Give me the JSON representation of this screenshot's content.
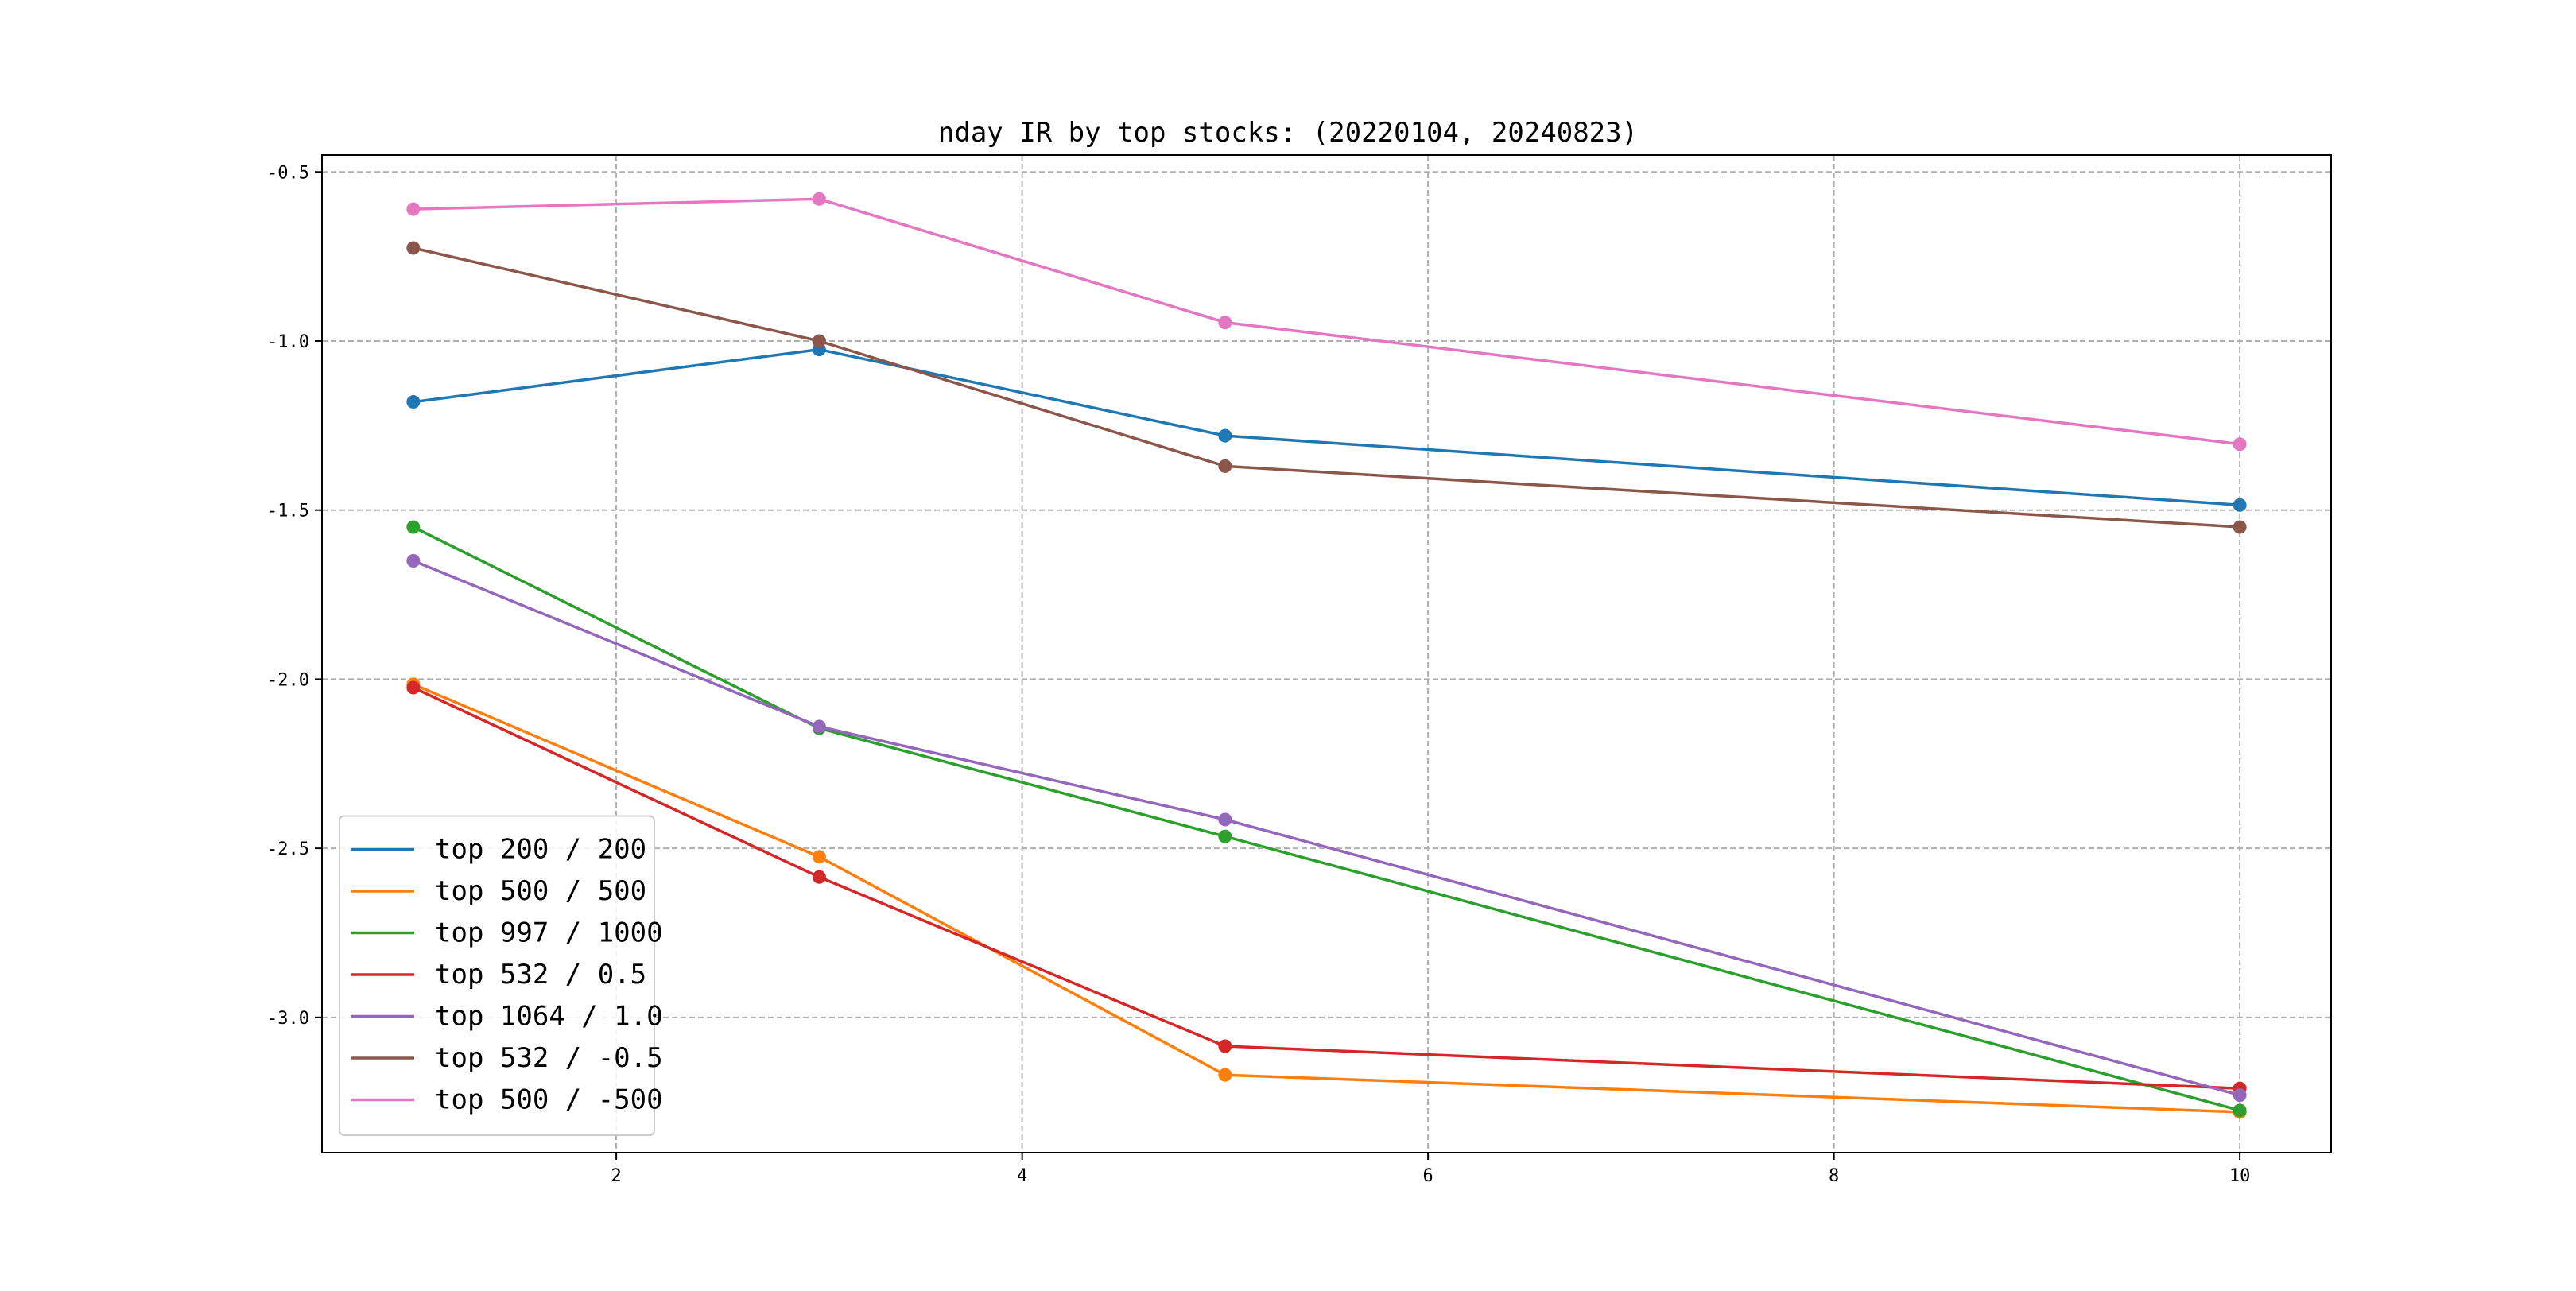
{
  "chart_data": {
    "type": "line",
    "title": "nday IR by top stocks: (20220104, 20240823)",
    "xlabel": "",
    "ylabel": "",
    "x": [
      1,
      3,
      5,
      10
    ],
    "xlim": [
      0.55,
      10.45
    ],
    "ylim": [
      -3.4,
      -0.45
    ],
    "xticks": [
      2,
      4,
      6,
      8,
      10
    ],
    "yticks": [
      -0.5,
      -1.0,
      -1.5,
      -2.0,
      -2.5,
      -3.0
    ],
    "xtick_labels": [
      "2",
      "4",
      "6",
      "8",
      "10"
    ],
    "ytick_labels": [
      "-0.5",
      "-1.0",
      "-1.5",
      "-2.0",
      "-2.5",
      "-3.0"
    ],
    "grid": true,
    "legend_position": "lower-left",
    "series": [
      {
        "name": "top 200 / 200",
        "color": "#1f77b4",
        "values": [
          -1.18,
          -1.025,
          -1.28,
          -1.485
        ]
      },
      {
        "name": "top 500 / 500",
        "color": "#ff7f0e",
        "values": [
          -2.015,
          -2.525,
          -3.17,
          -3.28
        ]
      },
      {
        "name": "top 997 / 1000",
        "color": "#2ca02c",
        "values": [
          -1.55,
          -2.145,
          -2.465,
          -3.275
        ]
      },
      {
        "name": "top 532 / 0.5",
        "color": "#d62728",
        "values": [
          -2.025,
          -2.585,
          -3.085,
          -3.21
        ]
      },
      {
        "name": "top 1064 / 1.0",
        "color": "#9467bd",
        "values": [
          -1.65,
          -2.14,
          -2.415,
          -3.23
        ]
      },
      {
        "name": "top 532 / -0.5",
        "color": "#8c564b",
        "values": [
          -0.725,
          -1.0,
          -1.37,
          -1.55
        ]
      },
      {
        "name": "top 500 / -500",
        "color": "#e377c2",
        "values": [
          -0.61,
          -0.58,
          -0.945,
          -1.305
        ]
      }
    ]
  }
}
